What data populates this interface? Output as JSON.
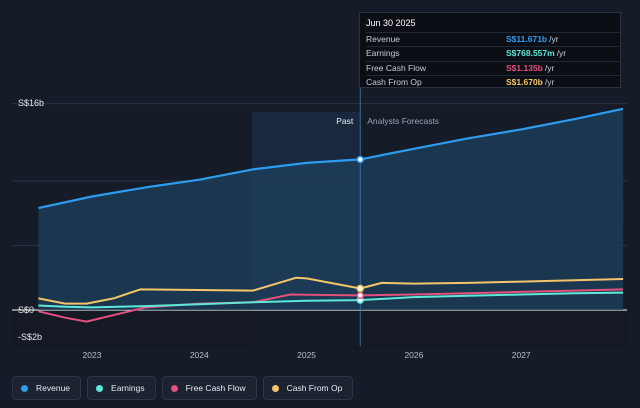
{
  "chart_data": {
    "type": "line",
    "x_axis": {
      "ticks": [
        "2023",
        "2024",
        "2025",
        "2026",
        "2027"
      ]
    },
    "y_axis": {
      "labels": [
        "S$16b",
        "S$0",
        "-S$2b"
      ],
      "ylim": [
        -2,
        16
      ]
    },
    "past_label": "Past",
    "forecast_label": "Analysts Forecasts",
    "divider_date": 2025.5,
    "series": [
      {
        "name": "Revenue",
        "color": "#2d9cf0",
        "points": [
          [
            2022.5,
            7.9
          ],
          [
            2023.0,
            8.8
          ],
          [
            2023.5,
            9.5
          ],
          [
            2024.0,
            10.1
          ],
          [
            2024.5,
            10.9
          ],
          [
            2025.0,
            11.4
          ],
          [
            2025.5,
            11.671
          ],
          [
            2026.0,
            12.5
          ],
          [
            2026.5,
            13.3
          ],
          [
            2027.0,
            14.0
          ],
          [
            2027.5,
            14.8
          ],
          [
            2027.95,
            15.6
          ]
        ]
      },
      {
        "name": "Earnings",
        "color": "#5de8d8",
        "points": [
          [
            2022.5,
            0.35
          ],
          [
            2022.75,
            0.25
          ],
          [
            2023.0,
            0.2
          ],
          [
            2023.5,
            0.3
          ],
          [
            2024.0,
            0.45
          ],
          [
            2024.5,
            0.6
          ],
          [
            2025.0,
            0.72
          ],
          [
            2025.5,
            0.768557
          ],
          [
            2026.0,
            1.0
          ],
          [
            2026.5,
            1.1
          ],
          [
            2027.0,
            1.2
          ],
          [
            2027.5,
            1.3
          ],
          [
            2027.95,
            1.35
          ]
        ]
      },
      {
        "name": "Free Cash Flow",
        "color": "#e2507e",
        "points": [
          [
            2022.5,
            -0.1
          ],
          [
            2022.75,
            -0.6
          ],
          [
            2022.95,
            -0.9
          ],
          [
            2023.15,
            -0.5
          ],
          [
            2023.5,
            0.2
          ],
          [
            2024.0,
            0.5
          ],
          [
            2024.5,
            0.6
          ],
          [
            2024.85,
            1.2
          ],
          [
            2025.0,
            1.18
          ],
          [
            2025.5,
            1.135
          ],
          [
            2026.0,
            1.2
          ],
          [
            2026.5,
            1.3
          ],
          [
            2027.0,
            1.4
          ],
          [
            2027.5,
            1.5
          ],
          [
            2027.95,
            1.6
          ]
        ]
      },
      {
        "name": "Cash From Op",
        "color": "#f4c56a",
        "points": [
          [
            2022.5,
            0.9
          ],
          [
            2022.75,
            0.5
          ],
          [
            2022.95,
            0.5
          ],
          [
            2023.2,
            0.9
          ],
          [
            2023.45,
            1.6
          ],
          [
            2024.0,
            1.55
          ],
          [
            2024.5,
            1.5
          ],
          [
            2024.9,
            2.5
          ],
          [
            2025.0,
            2.45
          ],
          [
            2025.5,
            1.67
          ],
          [
            2025.7,
            2.1
          ],
          [
            2026.0,
            2.05
          ],
          [
            2026.5,
            2.1
          ],
          [
            2027.0,
            2.2
          ],
          [
            2027.5,
            2.3
          ],
          [
            2027.95,
            2.4
          ]
        ]
      }
    ]
  },
  "tooltip": {
    "date": "Jun 30 2025",
    "rows": [
      {
        "label": "Revenue",
        "value": "S$11.671b",
        "unit": "/yr",
        "color": "#2d9cf0"
      },
      {
        "label": "Earnings",
        "value": "S$768.557m",
        "unit": "/yr",
        "color": "#5de8d8"
      },
      {
        "label": "Free Cash Flow",
        "value": "S$1.135b",
        "unit": "/yr",
        "color": "#e2507e"
      },
      {
        "label": "Cash From Op",
        "value": "S$1.670b",
        "unit": "/yr",
        "color": "#f4c56a"
      }
    ]
  },
  "legend": [
    {
      "label": "Revenue",
      "color": "#2d9cf0"
    },
    {
      "label": "Earnings",
      "color": "#5de8d8"
    },
    {
      "label": "Free Cash Flow",
      "color": "#e2507e"
    },
    {
      "label": "Cash From Op",
      "color": "#f4c56a"
    }
  ]
}
